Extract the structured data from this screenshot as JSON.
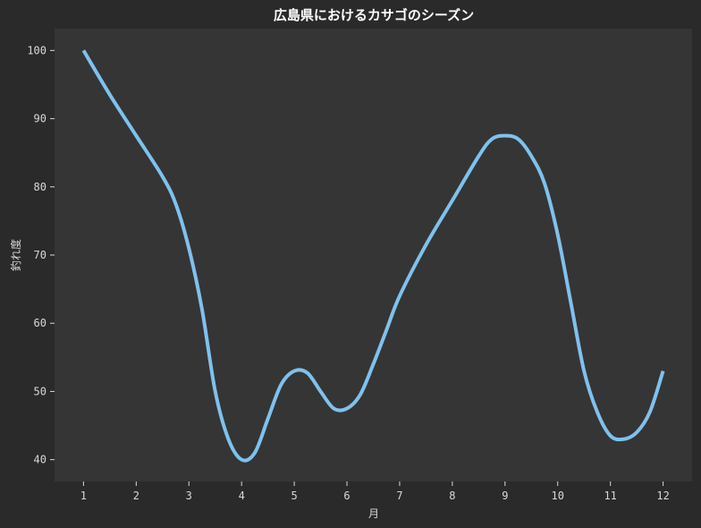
{
  "chart_data": {
    "type": "line",
    "title": "広島県におけるカサゴのシーズン",
    "xlabel": "月",
    "ylabel": "釣れ度",
    "x": [
      1,
      2,
      3,
      4,
      5,
      6,
      7,
      8,
      9,
      10,
      11,
      12
    ],
    "xlim": [
      0.45,
      12.55
    ],
    "ylim": [
      36.8,
      103.2
    ],
    "yticks": [
      40,
      50,
      60,
      70,
      80,
      90,
      100
    ],
    "grid": false,
    "legend": "none",
    "series": [
      {
        "points": [
          [
            1.0,
            100
          ],
          [
            1.5,
            93.5
          ],
          [
            2.0,
            87.5
          ],
          [
            2.5,
            81.5
          ],
          [
            2.75,
            77.5
          ],
          [
            3.0,
            71
          ],
          [
            3.25,
            62
          ],
          [
            3.5,
            50
          ],
          [
            3.75,
            43
          ],
          [
            4.0,
            40
          ],
          [
            4.25,
            41
          ],
          [
            4.5,
            46
          ],
          [
            4.75,
            51
          ],
          [
            5.0,
            53
          ],
          [
            5.25,
            52.7
          ],
          [
            5.5,
            50
          ],
          [
            5.75,
            47.5
          ],
          [
            6.0,
            47.5
          ],
          [
            6.25,
            49.5
          ],
          [
            6.5,
            54
          ],
          [
            6.75,
            59
          ],
          [
            7.0,
            64
          ],
          [
            7.5,
            71.5
          ],
          [
            8.0,
            78
          ],
          [
            8.5,
            84.5
          ],
          [
            8.75,
            87
          ],
          [
            9.0,
            87.5
          ],
          [
            9.25,
            87
          ],
          [
            9.5,
            84.5
          ],
          [
            9.75,
            80.5
          ],
          [
            10.0,
            73
          ],
          [
            10.25,
            63
          ],
          [
            10.5,
            53
          ],
          [
            10.75,
            47
          ],
          [
            11.0,
            43.5
          ],
          [
            11.25,
            43
          ],
          [
            11.5,
            44
          ],
          [
            11.75,
            47
          ],
          [
            12.0,
            53
          ]
        ]
      }
    ],
    "colors": {
      "figure_bg": "#2a2a2a",
      "plot_bg": "#353535",
      "line": "#7fc1ed",
      "text": "#d9d9d9",
      "title": "#ffffff"
    }
  }
}
